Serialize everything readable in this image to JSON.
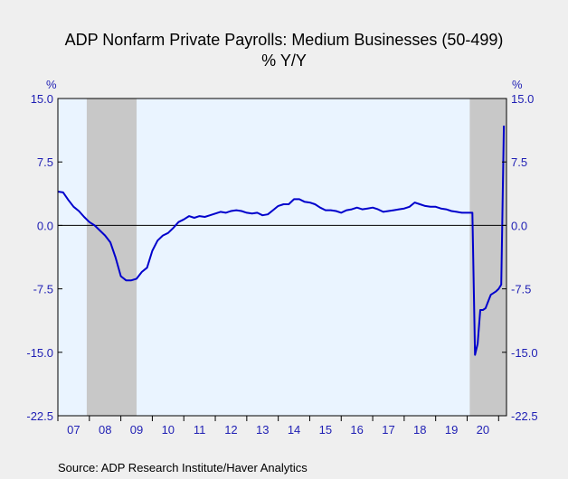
{
  "chart_data": {
    "type": "line",
    "title": "ADP Nonfarm Private Payrolls: Medium Businesses (50-499)",
    "subtitle": "% Y/Y",
    "ylabel_left": "%",
    "ylabel_right": "%",
    "ylim": [
      -22.5,
      15.0
    ],
    "yticks": [
      15.0,
      7.5,
      0.0,
      -7.5,
      -15.0,
      -22.5
    ],
    "ytick_labels": [
      "15.0",
      "7.5",
      "0.0",
      "-7.5",
      "-15.0",
      "-22.5"
    ],
    "xlim": [
      2007.0,
      2021.25
    ],
    "xtick_labels": [
      "07",
      "08",
      "09",
      "10",
      "11",
      "12",
      "13",
      "14",
      "15",
      "16",
      "17",
      "18",
      "19",
      "20"
    ],
    "recessions": [
      [
        2007.917,
        2009.5
      ],
      [
        2020.083,
        2021.25
      ]
    ],
    "zero_line": true,
    "series": [
      {
        "color": "#0000cc",
        "points": [
          [
            2007.0,
            4.0
          ],
          [
            2007.167,
            3.9
          ],
          [
            2007.333,
            3.0
          ],
          [
            2007.5,
            2.2
          ],
          [
            2007.667,
            1.7
          ],
          [
            2007.833,
            1.0
          ],
          [
            2008.0,
            0.4
          ],
          [
            2008.167,
            0.0
          ],
          [
            2008.333,
            -0.6
          ],
          [
            2008.5,
            -1.2
          ],
          [
            2008.667,
            -2.0
          ],
          [
            2008.833,
            -3.8
          ],
          [
            2009.0,
            -6.0
          ],
          [
            2009.167,
            -6.5
          ],
          [
            2009.333,
            -6.5
          ],
          [
            2009.5,
            -6.3
          ],
          [
            2009.667,
            -5.5
          ],
          [
            2009.833,
            -5.0
          ],
          [
            2010.0,
            -3.0
          ],
          [
            2010.167,
            -1.8
          ],
          [
            2010.333,
            -1.2
          ],
          [
            2010.5,
            -0.9
          ],
          [
            2010.667,
            -0.3
          ],
          [
            2010.833,
            0.4
          ],
          [
            2011.0,
            0.7
          ],
          [
            2011.167,
            1.1
          ],
          [
            2011.333,
            0.9
          ],
          [
            2011.5,
            1.1
          ],
          [
            2011.667,
            1.0
          ],
          [
            2011.833,
            1.2
          ],
          [
            2012.0,
            1.4
          ],
          [
            2012.167,
            1.6
          ],
          [
            2012.333,
            1.5
          ],
          [
            2012.5,
            1.7
          ],
          [
            2012.667,
            1.8
          ],
          [
            2012.833,
            1.7
          ],
          [
            2013.0,
            1.5
          ],
          [
            2013.167,
            1.4
          ],
          [
            2013.333,
            1.5
          ],
          [
            2013.5,
            1.2
          ],
          [
            2013.667,
            1.3
          ],
          [
            2013.833,
            1.8
          ],
          [
            2014.0,
            2.3
          ],
          [
            2014.167,
            2.5
          ],
          [
            2014.333,
            2.5
          ],
          [
            2014.5,
            3.1
          ],
          [
            2014.667,
            3.1
          ],
          [
            2014.833,
            2.8
          ],
          [
            2015.0,
            2.7
          ],
          [
            2015.167,
            2.5
          ],
          [
            2015.333,
            2.1
          ],
          [
            2015.5,
            1.8
          ],
          [
            2015.667,
            1.8
          ],
          [
            2015.833,
            1.7
          ],
          [
            2016.0,
            1.5
          ],
          [
            2016.167,
            1.8
          ],
          [
            2016.333,
            1.9
          ],
          [
            2016.5,
            2.1
          ],
          [
            2016.667,
            1.9
          ],
          [
            2016.833,
            2.0
          ],
          [
            2017.0,
            2.1
          ],
          [
            2017.167,
            1.9
          ],
          [
            2017.333,
            1.6
          ],
          [
            2017.5,
            1.7
          ],
          [
            2017.667,
            1.8
          ],
          [
            2017.833,
            1.9
          ],
          [
            2018.0,
            2.0
          ],
          [
            2018.167,
            2.2
          ],
          [
            2018.333,
            2.7
          ],
          [
            2018.5,
            2.5
          ],
          [
            2018.667,
            2.3
          ],
          [
            2018.833,
            2.2
          ],
          [
            2019.0,
            2.2
          ],
          [
            2019.167,
            2.0
          ],
          [
            2019.333,
            1.9
          ],
          [
            2019.5,
            1.7
          ],
          [
            2019.667,
            1.6
          ],
          [
            2019.833,
            1.5
          ],
          [
            2020.0,
            1.5
          ],
          [
            2020.167,
            1.5
          ],
          [
            2020.25,
            -15.3
          ],
          [
            2020.333,
            -14.0
          ],
          [
            2020.417,
            -10.0
          ],
          [
            2020.5,
            -10.0
          ],
          [
            2020.583,
            -9.8
          ],
          [
            2020.667,
            -9.0
          ],
          [
            2020.75,
            -8.2
          ],
          [
            2020.833,
            -8.0
          ],
          [
            2020.917,
            -7.8
          ],
          [
            2021.0,
            -7.5
          ],
          [
            2021.083,
            -7.0
          ],
          [
            2021.167,
            11.8
          ]
        ]
      }
    ],
    "colors": {
      "plot_background": "#eaf4ff",
      "recession_shade": "#c8c8c8",
      "line": "#0000cc",
      "tick_text": "#1f1fb4"
    }
  },
  "source": "Source:  ADP Research Institute/Haver Analytics"
}
